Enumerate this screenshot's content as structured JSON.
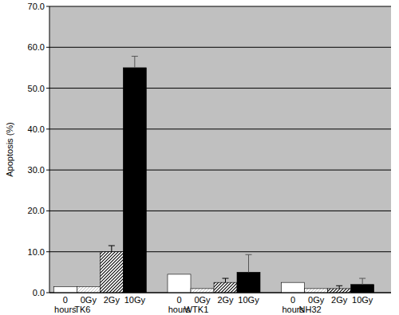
{
  "chart_data": {
    "type": "bar",
    "y_label": "Apoptosis (%)",
    "categories": [
      "TK6",
      "WTK1",
      "NH32"
    ],
    "series": [
      {
        "name": "0 hours",
        "color": "#ffffff",
        "values": [
          1.5,
          4.5,
          2.5
        ],
        "errors": [
          null,
          null,
          null
        ]
      },
      {
        "name": "0Gy",
        "color": "#ffffff",
        "values": [
          1.5,
          1.0,
          1.0
        ],
        "errors": [
          null,
          null,
          null
        ]
      },
      {
        "name": "2Gy",
        "color": "#ffffff",
        "values": [
          10.0,
          2.5,
          1.0
        ],
        "errors": [
          1.5,
          1.0,
          0.7
        ]
      },
      {
        "name": "10Gy",
        "color": "#000000",
        "values": [
          55.0,
          5.0,
          2.0
        ],
        "errors": [
          2.8,
          4.3,
          1.5
        ]
      }
    ],
    "ylim": [
      0,
      70
    ],
    "yticks": [
      {
        "value": 0,
        "label": "0.0"
      },
      {
        "value": 10,
        "label": "10.0"
      },
      {
        "value": 20,
        "label": "20.0"
      },
      {
        "value": 30,
        "label": "30.0"
      },
      {
        "value": 40,
        "label": "40.0"
      },
      {
        "value": 50,
        "label": "50.0"
      },
      {
        "value": 60,
        "label": "60.0"
      },
      {
        "value": 70,
        "label": "70.0"
      }
    ],
    "grid": true
  }
}
